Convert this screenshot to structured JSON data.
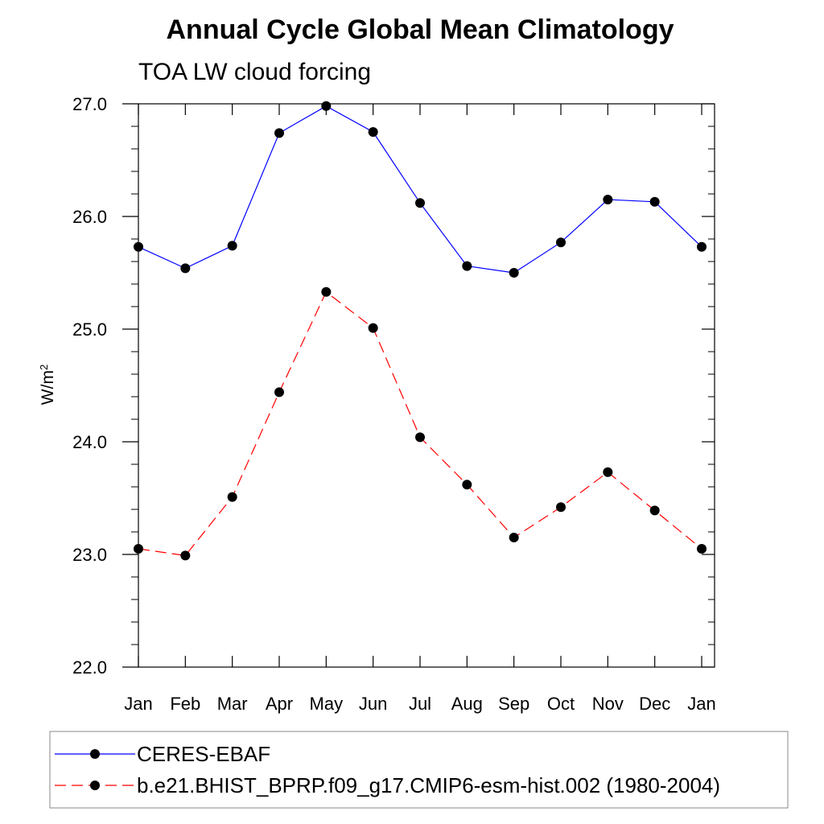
{
  "chart_data": {
    "type": "line",
    "title": "Annual Cycle Global Mean Climatology",
    "subtitle": "TOA LW cloud forcing",
    "xlabel": "",
    "ylabel": "W/m",
    "ylabel_superscript": "2",
    "categories": [
      "Jan",
      "Feb",
      "Mar",
      "Apr",
      "May",
      "Jun",
      "Jul",
      "Aug",
      "Sep",
      "Oct",
      "Nov",
      "Dec",
      "Jan"
    ],
    "ylim": [
      22.0,
      27.0
    ],
    "yticks": [
      "22.0",
      "23.0",
      "24.0",
      "25.0",
      "26.0",
      "27.0"
    ],
    "grid": false,
    "legend_position": "bottom",
    "series": [
      {
        "name": "CERES-EBAF",
        "color": "#0000ff",
        "line_style": "solid",
        "marker": "filled-circle",
        "values": [
          25.73,
          25.54,
          25.74,
          26.74,
          26.98,
          26.75,
          26.12,
          25.56,
          25.5,
          25.77,
          26.15,
          26.13,
          25.73
        ]
      },
      {
        "name": "b.e21.BHIST_BPRP.f09_g17.CMIP6-esm-hist.002 (1980-2004)",
        "color": "#ff0000",
        "line_style": "dashed",
        "marker": "filled-circle",
        "values": [
          23.05,
          22.99,
          23.51,
          24.44,
          25.33,
          25.01,
          24.04,
          23.62,
          23.15,
          23.42,
          23.73,
          23.39,
          23.05
        ]
      }
    ]
  }
}
